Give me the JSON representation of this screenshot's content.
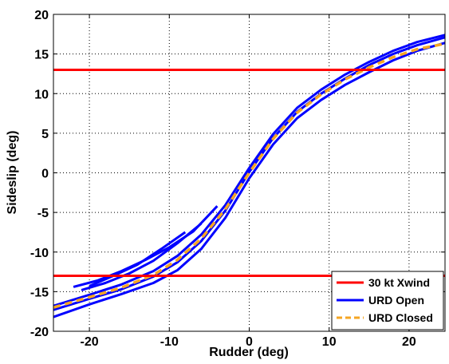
{
  "chart_data": {
    "type": "line",
    "title": "",
    "xlabel": "Rudder (deg)",
    "ylabel": "Sideslip (deg)",
    "xlim": [
      -24.5,
      24.5
    ],
    "ylim": [
      -20,
      20
    ],
    "xticks": [
      -20,
      -10,
      0,
      10,
      20
    ],
    "yticks": [
      -20,
      -15,
      -10,
      -5,
      0,
      5,
      10,
      15,
      20
    ],
    "xtick_labels": [
      "-20",
      "-10",
      "0",
      "10",
      "20"
    ],
    "ytick_labels": [
      "-20",
      "-15",
      "-10",
      "-5",
      "0",
      "5",
      "10",
      "15",
      "20"
    ],
    "grid": true,
    "legend_position": "bottom-right",
    "series": [
      {
        "name": "30 kt Xwind",
        "color": "#ff0000",
        "style": "solid",
        "lines": [
          {
            "x": [
              -24.5,
              24.5
            ],
            "y": [
              13,
              13
            ]
          },
          {
            "x": [
              -24.5,
              24.5
            ],
            "y": [
              -13,
              -13
            ]
          }
        ]
      },
      {
        "name": "URD Open",
        "color": "#0000ff",
        "style": "solid",
        "lines": [
          {
            "x": [
              -24.5,
              -20,
              -16,
              -12,
              -9,
              -6,
              -3,
              0,
              3,
              6,
              9,
              12,
              15,
              18,
              21,
              24.5
            ],
            "y": [
              -18.2,
              -16.6,
              -15.3,
              -13.9,
              -12.3,
              -9.6,
              -5.7,
              -0.7,
              3.6,
              6.9,
              9.2,
              11.1,
              12.7,
              14.2,
              15.4,
              16.4
            ]
          },
          {
            "x": [
              -24.5,
              -20,
              -16,
              -12,
              -9,
              -6,
              -3,
              0,
              3,
              6,
              9,
              12,
              15,
              18,
              21,
              24.5
            ],
            "y": [
              -17.3,
              -15.9,
              -14.7,
              -13.1,
              -11.3,
              -8.6,
              -4.8,
              0.1,
              4.4,
              7.7,
              10.0,
              11.9,
              13.6,
              15.0,
              16.1,
              17.1
            ]
          },
          {
            "x": [
              -24.5,
              -20,
              -16,
              -12,
              -9,
              -6,
              -3,
              0,
              3,
              6,
              9,
              12,
              15,
              18,
              21,
              24.5
            ],
            "y": [
              -16.8,
              -15.4,
              -14.1,
              -12.4,
              -10.5,
              -7.8,
              -4.1,
              0.6,
              4.9,
              8.2,
              10.5,
              12.4,
              14.0,
              15.4,
              16.5,
              17.4
            ]
          },
          {
            "x": [
              -22,
              -19,
              -16,
              -13,
              -10,
              -7,
              -4
            ],
            "y": [
              -14.4,
              -13.6,
              -12.4,
              -11.0,
              -9.4,
              -7.4,
              -4.2
            ]
          },
          {
            "x": [
              -21,
              -18,
              -15,
              -12,
              -9,
              -6
            ],
            "y": [
              -14.8,
              -13.9,
              -12.7,
              -11.1,
              -8.9,
              -6.4
            ]
          },
          {
            "x": [
              -20,
              -17,
              -14,
              -11,
              -8
            ],
            "y": [
              -14.3,
              -13.0,
              -11.6,
              -9.6,
              -7.5
            ]
          }
        ]
      },
      {
        "name": "URD Closed",
        "color": "#f5a623",
        "style": "dashed",
        "lines": [
          {
            "x": [
              -24.5,
              -20,
              -16,
              -12,
              -9,
              -6,
              -3,
              0,
              3,
              6,
              9,
              12,
              15,
              18,
              21,
              24.5
            ],
            "y": [
              -17.0,
              -15.7,
              -14.5,
              -12.9,
              -11.0,
              -8.3,
              -4.6,
              0.0,
              4.3,
              7.6,
              9.9,
              11.8,
              13.3,
              14.6,
              15.6,
              16.3
            ]
          }
        ]
      }
    ]
  }
}
